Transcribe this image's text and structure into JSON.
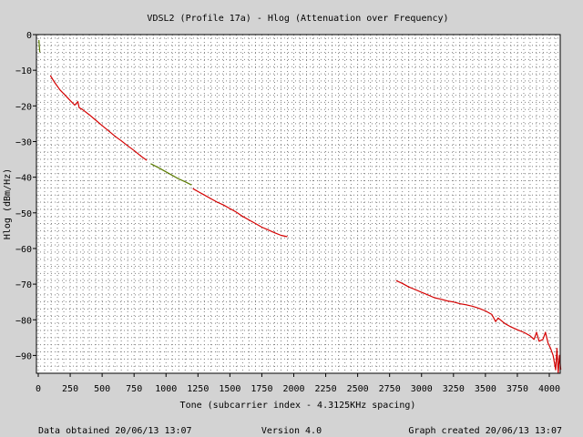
{
  "chart_data": {
    "type": "line",
    "title": "VDSL2 (Profile 17a) - Hlog (Attenuation over Frequency)",
    "xlabel": "Tone (subcarrier index - 4.3125KHz spacing)",
    "ylabel": "Hlog (dBm/Hz)",
    "xlim": [
      0,
      4096
    ],
    "ylim": [
      -95,
      0
    ],
    "x_ticks": [
      0,
      250,
      500,
      750,
      1000,
      1250,
      1500,
      1750,
      2000,
      2250,
      2500,
      2750,
      3000,
      3250,
      3500,
      3750,
      4000
    ],
    "x_tick_labels": [
      "0",
      "250",
      "500",
      "750",
      "1000",
      "1250",
      "1500",
      "1750",
      "2000",
      "2250",
      "2500",
      "2750",
      "3000",
      "3250",
      "3500",
      "3750",
      "4000"
    ],
    "y_ticks": [
      0,
      -10,
      -20,
      -30,
      -40,
      -50,
      -60,
      -70,
      -80,
      -90
    ],
    "y_tick_labels": [
      "0",
      "−10",
      "−20",
      "−30",
      "−40",
      "−50",
      "−60",
      "−70",
      "−80",
      "−90"
    ],
    "grid": true,
    "series": [
      {
        "color": "#5a7a00",
        "points": [
          [
            5,
            -1.5
          ],
          [
            8,
            -3
          ],
          [
            12,
            -5
          ]
        ]
      },
      {
        "color": "#d40000",
        "points": [
          [
            95,
            -11.5
          ],
          [
            130,
            -13.5
          ],
          [
            170,
            -15.5
          ],
          [
            210,
            -17
          ],
          [
            250,
            -18.5
          ],
          [
            285,
            -19.8
          ],
          [
            300,
            -19.2
          ],
          [
            310,
            -18.8
          ],
          [
            320,
            -20.5
          ],
          [
            345,
            -21
          ],
          [
            400,
            -22.5
          ],
          [
            450,
            -24
          ],
          [
            500,
            -25.5
          ],
          [
            550,
            -27
          ],
          [
            600,
            -28.5
          ],
          [
            650,
            -29.8
          ],
          [
            700,
            -31.2
          ],
          [
            750,
            -32.5
          ],
          [
            800,
            -34
          ],
          [
            850,
            -35.3
          ]
        ]
      },
      {
        "color": "#5a7a00",
        "points": [
          [
            880,
            -36.2
          ],
          [
            950,
            -37.5
          ],
          [
            1000,
            -38.5
          ],
          [
            1050,
            -39.5
          ],
          [
            1100,
            -40.5
          ],
          [
            1150,
            -41.3
          ],
          [
            1200,
            -42.2
          ]
        ]
      },
      {
        "color": "#d40000",
        "points": [
          [
            1210,
            -43.2
          ],
          [
            1260,
            -44.2
          ],
          [
            1300,
            -45
          ],
          [
            1350,
            -46
          ],
          [
            1400,
            -47
          ],
          [
            1450,
            -47.8
          ],
          [
            1500,
            -48.8
          ],
          [
            1550,
            -49.8
          ],
          [
            1600,
            -51
          ],
          [
            1650,
            -52
          ],
          [
            1700,
            -53
          ],
          [
            1750,
            -54
          ],
          [
            1800,
            -54.8
          ],
          [
            1850,
            -55.6
          ],
          [
            1900,
            -56.3
          ],
          [
            1950,
            -56.7
          ]
        ]
      },
      {
        "color": "#d40000",
        "points": [
          [
            2800,
            -69
          ],
          [
            2850,
            -69.8
          ],
          [
            2900,
            -70.8
          ],
          [
            2950,
            -71.5
          ],
          [
            3000,
            -72.3
          ],
          [
            3050,
            -73
          ],
          [
            3100,
            -73.8
          ],
          [
            3150,
            -74.2
          ],
          [
            3200,
            -74.7
          ],
          [
            3250,
            -75
          ],
          [
            3300,
            -75.5
          ],
          [
            3350,
            -75.8
          ],
          [
            3400,
            -76.2
          ],
          [
            3450,
            -76.8
          ],
          [
            3500,
            -77.5
          ],
          [
            3550,
            -78.5
          ],
          [
            3580,
            -80.5
          ],
          [
            3600,
            -79.5
          ],
          [
            3650,
            -81
          ],
          [
            3700,
            -82
          ],
          [
            3750,
            -82.8
          ],
          [
            3800,
            -83.5
          ],
          [
            3850,
            -84.5
          ],
          [
            3880,
            -85.5
          ],
          [
            3900,
            -83.5
          ],
          [
            3920,
            -86
          ],
          [
            3950,
            -85.5
          ],
          [
            3970,
            -83.5
          ],
          [
            3990,
            -86.5
          ],
          [
            4010,
            -88
          ],
          [
            4030,
            -90
          ],
          [
            4050,
            -94
          ],
          [
            4060,
            -88
          ],
          [
            4070,
            -95
          ],
          [
            4080,
            -90
          ],
          [
            4090,
            -94
          ]
        ]
      }
    ]
  },
  "footer": {
    "left": "Data obtained 20/06/13 13:07",
    "center": "Version 4.0",
    "right": "Graph created 20/06/13 13:07"
  },
  "colors": {
    "background": "#d3d3d3",
    "plot_background": "#ffffff",
    "grid": "#808080",
    "axis": "#000000"
  }
}
